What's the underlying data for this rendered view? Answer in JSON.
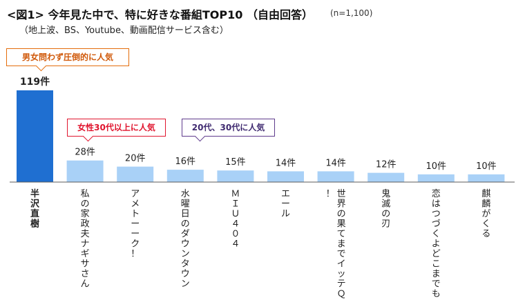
{
  "title": "<図1> 今年見た中で、特に好きな番組TOP10 （自由回答）",
  "note": "(n=1,100)",
  "subtitle": "（地上波、BS、Youtube、動画配信サービス含む）",
  "callouts": {
    "top": "男女問わず圧倒的に人気",
    "women30": "女性30代以上に人気",
    "age2030": "20代、30代に人気"
  },
  "colors": {
    "highlight_bar": "#1f6fd1",
    "bar": "#a9d1f7",
    "axis": "#595959",
    "orange": "#e46c0a",
    "red": "#e0142d",
    "purple": "#5e3a8c"
  },
  "chart_data": {
    "type": "bar",
    "categories": [
      "半沢直樹",
      "私の家政夫ナギサさん",
      "アメトーーク！",
      "水曜日のダウンタウン",
      "ＭＩＵ４０４",
      "エール",
      "世界の果てまでイッテＱ！",
      "鬼滅の刃",
      "恋はつづくよどこまでも",
      "麒麟がくる"
    ],
    "values": [
      119,
      28,
      20,
      16,
      15,
      14,
      14,
      12,
      10,
      10
    ],
    "value_labels": [
      "119件",
      "28件",
      "20件",
      "16件",
      "15件",
      "14件",
      "14件",
      "12件",
      "10件",
      "10件"
    ],
    "highlight_index": 0,
    "ylim": [
      0,
      119
    ],
    "grid": false,
    "legend": "none"
  }
}
